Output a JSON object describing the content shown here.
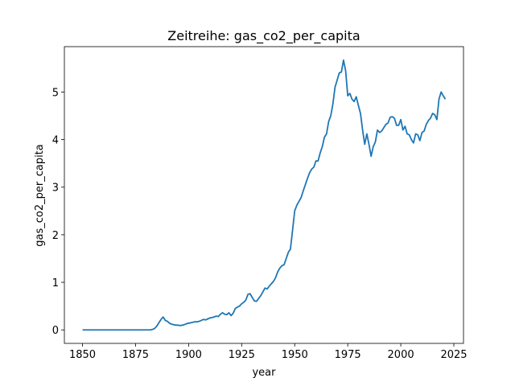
{
  "chart_data": {
    "type": "line",
    "title": "Zeitreihe: gas_co2_per_capita",
    "x_label": "year",
    "y_label": "gas_co2_per_capita",
    "color": "#1f77b4",
    "grid": false,
    "x": [
      1850,
      1851,
      1852,
      1853,
      1854,
      1855,
      1856,
      1857,
      1858,
      1859,
      1860,
      1861,
      1862,
      1863,
      1864,
      1865,
      1866,
      1867,
      1868,
      1869,
      1870,
      1871,
      1872,
      1873,
      1874,
      1875,
      1876,
      1877,
      1878,
      1879,
      1880,
      1881,
      1882,
      1883,
      1884,
      1885,
      1886,
      1887,
      1888,
      1889,
      1890,
      1891,
      1892,
      1893,
      1894,
      1895,
      1896,
      1897,
      1898,
      1899,
      1900,
      1901,
      1902,
      1903,
      1904,
      1905,
      1906,
      1907,
      1908,
      1909,
      1910,
      1911,
      1912,
      1913,
      1914,
      1915,
      1916,
      1917,
      1918,
      1919,
      1920,
      1921,
      1922,
      1923,
      1924,
      1925,
      1926,
      1927,
      1928,
      1929,
      1930,
      1931,
      1932,
      1933,
      1934,
      1935,
      1936,
      1937,
      1938,
      1939,
      1940,
      1941,
      1942,
      1943,
      1944,
      1945,
      1946,
      1947,
      1948,
      1949,
      1950,
      1951,
      1952,
      1953,
      1954,
      1955,
      1956,
      1957,
      1958,
      1959,
      1960,
      1961,
      1962,
      1963,
      1964,
      1965,
      1966,
      1967,
      1968,
      1969,
      1970,
      1971,
      1972,
      1973,
      1974,
      1975,
      1976,
      1977,
      1978,
      1979,
      1980,
      1981,
      1982,
      1983,
      1984,
      1985,
      1986,
      1987,
      1988,
      1989,
      1990,
      1991,
      1992,
      1993,
      1994,
      1995,
      1996,
      1997,
      1998,
      1999,
      2000,
      2001,
      2002,
      2003,
      2004,
      2005,
      2006,
      2007,
      2008,
      2009,
      2010,
      2011,
      2012,
      2013,
      2014,
      2015,
      2016,
      2017,
      2018,
      2019,
      2020,
      2021
    ],
    "values": [
      0,
      0,
      0,
      0,
      0,
      0,
      0,
      0,
      0,
      0,
      0,
      0,
      0,
      0,
      0,
      0,
      0,
      0,
      0,
      0,
      0,
      0,
      0,
      0,
      0,
      0,
      0,
      0,
      0,
      0,
      0,
      0,
      0,
      0.01,
      0.03,
      0.08,
      0.15,
      0.22,
      0.27,
      0.2,
      0.18,
      0.14,
      0.12,
      0.11,
      0.1,
      0.1,
      0.09,
      0.1,
      0.11,
      0.13,
      0.14,
      0.15,
      0.16,
      0.17,
      0.17,
      0.18,
      0.2,
      0.22,
      0.21,
      0.23,
      0.25,
      0.26,
      0.27,
      0.29,
      0.28,
      0.33,
      0.36,
      0.33,
      0.32,
      0.36,
      0.3,
      0.35,
      0.45,
      0.48,
      0.5,
      0.55,
      0.58,
      0.63,
      0.75,
      0.76,
      0.68,
      0.61,
      0.6,
      0.66,
      0.72,
      0.8,
      0.88,
      0.86,
      0.92,
      0.97,
      1.02,
      1.1,
      1.22,
      1.3,
      1.35,
      1.37,
      1.5,
      1.63,
      1.7,
      2.1,
      2.5,
      2.62,
      2.7,
      2.78,
      2.92,
      3.05,
      3.18,
      3.3,
      3.38,
      3.42,
      3.55,
      3.55,
      3.72,
      3.85,
      4.05,
      4.12,
      4.38,
      4.5,
      4.75,
      5.1,
      5.25,
      5.4,
      5.42,
      5.67,
      5.45,
      4.92,
      4.97,
      4.85,
      4.8,
      4.9,
      4.72,
      4.55,
      4.2,
      3.9,
      4.12,
      3.9,
      3.65,
      3.85,
      3.95,
      4.2,
      4.15,
      4.18,
      4.25,
      4.32,
      4.35,
      4.47,
      4.48,
      4.45,
      4.3,
      4.3,
      4.42,
      4.2,
      4.28,
      4.12,
      4.1,
      4.0,
      3.93,
      4.12,
      4.1,
      3.98,
      4.15,
      4.18,
      4.32,
      4.4,
      4.45,
      4.55,
      4.52,
      4.42,
      4.85,
      5.0,
      4.92,
      4.85
    ],
    "xlim": [
      1841.45,
      2029.55
    ],
    "xticks": [
      1850,
      1875,
      1900,
      1925,
      1950,
      1975,
      2000,
      2025
    ],
    "ylim": [
      -0.2835,
      5.9535
    ],
    "yticks": [
      0,
      1,
      2,
      3,
      4,
      5
    ]
  }
}
